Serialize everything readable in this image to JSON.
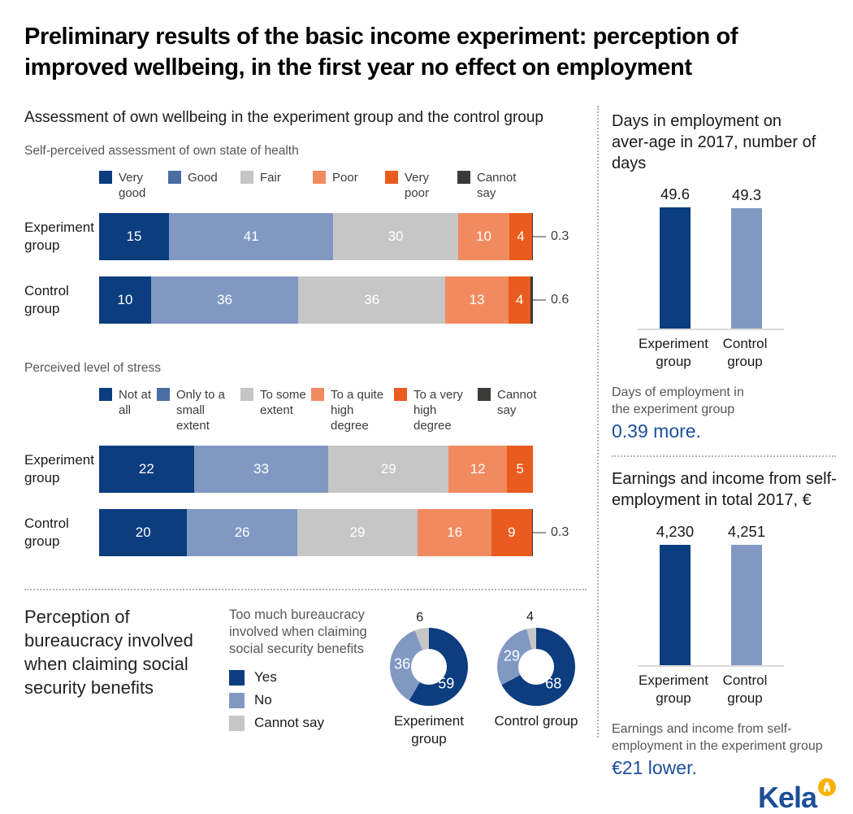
{
  "title": "Preliminary results of the basic income experiment: perception of improved wellbeing, in the first year no effect on employment",
  "wellbeing_heading": "Assessment of own wellbeing in the experiment group and the control group",
  "bureaucracy": {
    "title": "Perception of bureaucracy involved when claiming social security benefits",
    "legend_title": "Too much bureaucracy involved when claiming social security benefits"
  },
  "employment_note": {
    "text": "Days of employment in the experiment group",
    "highlight": "0.39 more."
  },
  "earnings_note": {
    "text": "Earnings and income from self-employment in the experiment group",
    "highlight": "€21 lower."
  },
  "logo": {
    "text": "Kela"
  },
  "colors": {
    "navy": "#0b3d7f",
    "mid_blue": "#8199c2",
    "legend_blue": "#4a6da3",
    "gray": "#c6c6c6",
    "salmon": "#f28a60",
    "orange": "#e95b1e",
    "charcoal": "#3a3a39",
    "gray_text": "#575756",
    "highlight_blue": "#1c4e9c",
    "kela_blue": "#1d4f96",
    "kela_gold": "#f9b000"
  },
  "chart_data": [
    {
      "id": "health",
      "type": "bar",
      "variant": "horizontal-stacked",
      "subtitle": "Self-perceived assessment of own state of health",
      "legend": [
        "Very good",
        "Good",
        "Fair",
        "Poor",
        "Very poor",
        "Cannot say"
      ],
      "legend_colors": [
        "#0b3d7f",
        "#4a6da3",
        "#c6c6c6",
        "#f28a60",
        "#e95b1e",
        "#3a3a39"
      ],
      "segment_colors": [
        "#0b3d7f",
        "#8199c2",
        "#c6c6c6",
        "#f28a60",
        "#e95b1e",
        "#3a3a39"
      ],
      "unit": "%",
      "rows": [
        {
          "category": "Experiment group",
          "values": [
            15,
            41,
            30,
            10,
            4,
            0.3
          ],
          "callout": "0.3"
        },
        {
          "category": "Control group",
          "values": [
            10,
            36,
            36,
            13,
            4,
            0.6
          ],
          "callout": "0.6"
        }
      ]
    },
    {
      "id": "stress",
      "type": "bar",
      "variant": "horizontal-stacked",
      "subtitle": "Perceived level of stress",
      "legend": [
        "Not at all",
        "Only to a small extent",
        "To some extent",
        "To a quite high degree",
        "To a very high degree",
        "Cannot say"
      ],
      "legend_colors": [
        "#0b3d7f",
        "#4a6da3",
        "#c6c6c6",
        "#f28a60",
        "#e95b1e",
        "#3a3a39"
      ],
      "segment_colors": [
        "#0b3d7f",
        "#8199c2",
        "#c6c6c6",
        "#f28a60",
        "#e95b1e",
        "#3a3a39"
      ],
      "unit": "%",
      "rows": [
        {
          "category": "Experiment group",
          "values": [
            22,
            33,
            29,
            12,
            5,
            0
          ],
          "callout": null
        },
        {
          "category": "Control group",
          "values": [
            20,
            26,
            29,
            16,
            9,
            0.3
          ],
          "callout": "0.3"
        }
      ]
    },
    {
      "id": "bureaucracy-donuts",
      "type": "pie",
      "variant": "donut",
      "legend": [
        "Yes",
        "No",
        "Cannot say"
      ],
      "colors": [
        "#0b3d7f",
        "#8199c2",
        "#c6c6c6"
      ],
      "donuts": [
        {
          "label": "Experiment group",
          "values": [
            59,
            36,
            6
          ]
        },
        {
          "label": "Control group",
          "values": [
            68,
            29,
            4
          ]
        }
      ]
    },
    {
      "id": "employment-days",
      "type": "bar",
      "title": "Days in employment on aver-age in 2017, number of days",
      "categories": [
        "Experiment group",
        "Control group"
      ],
      "values": [
        49.6,
        49.3
      ],
      "value_labels": [
        "49.6",
        "49.3"
      ],
      "bar_colors": [
        "#0b3d7f",
        "#8199c2"
      ],
      "ylim": [
        0,
        50
      ]
    },
    {
      "id": "earnings",
      "type": "bar",
      "title": "Earnings and income from self-employment in total 2017, €",
      "categories": [
        "Experiment group",
        "Control group"
      ],
      "values": [
        4230,
        4251
      ],
      "value_labels": [
        "4,230",
        "4,251"
      ],
      "bar_colors": [
        "#0b3d7f",
        "#8199c2"
      ],
      "ylim": [
        0,
        4300
      ]
    }
  ]
}
